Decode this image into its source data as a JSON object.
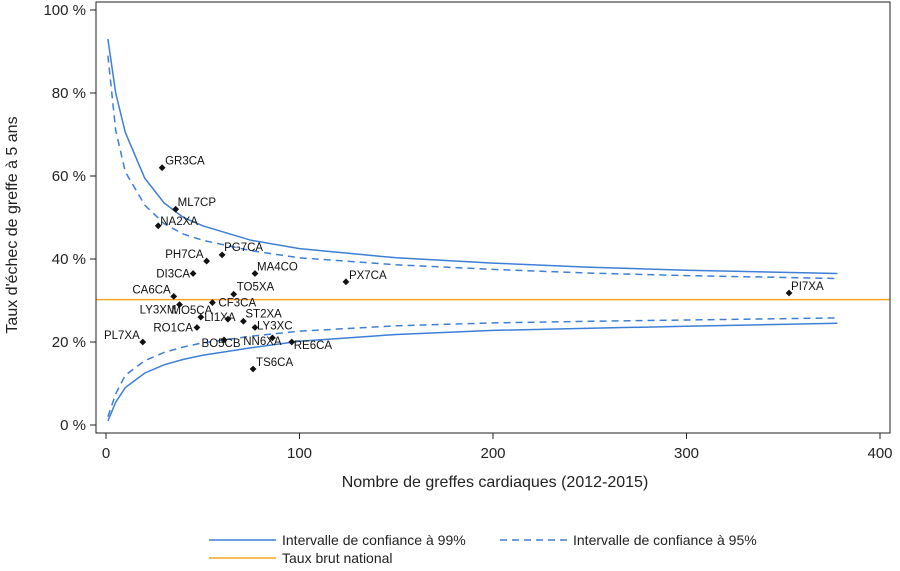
{
  "chart_data": {
    "type": "scatter",
    "title": "",
    "xlabel": "Nombre de greffes cardiaques (2012-2015)",
    "ylabel": "Taux d'échec de greffe à 5 ans",
    "xlim": [
      0,
      400
    ],
    "ylim": [
      0,
      100
    ],
    "xticks": [
      0,
      100,
      200,
      300,
      400
    ],
    "yticks": [
      0,
      20,
      40,
      60,
      80,
      100
    ],
    "ytick_labels": [
      "0 %",
      "20 %",
      "40 %",
      "60 %",
      "80 %",
      "100 %"
    ],
    "grid": false,
    "legend_position": "bottom",
    "national_rate": 30.2,
    "series": [
      {
        "name": "Intervalle de confiance à 99%",
        "style": "solid",
        "color": "#3d7fd6",
        "upper": [
          [
            1,
            93
          ],
          [
            5,
            80
          ],
          [
            10,
            70.5
          ],
          [
            20,
            59.5
          ],
          [
            30,
            53.5
          ],
          [
            40,
            50
          ],
          [
            50,
            48
          ],
          [
            75,
            44.5
          ],
          [
            100,
            42.5
          ],
          [
            150,
            40.3
          ],
          [
            200,
            39
          ],
          [
            250,
            38
          ],
          [
            300,
            37.3
          ],
          [
            378,
            36.5
          ]
        ],
        "lower": [
          [
            1,
            1
          ],
          [
            5,
            5.5
          ],
          [
            10,
            9
          ],
          [
            20,
            12.5
          ],
          [
            30,
            14.5
          ],
          [
            40,
            15.8
          ],
          [
            50,
            16.8
          ],
          [
            75,
            18.6
          ],
          [
            100,
            20.2
          ],
          [
            150,
            21.8
          ],
          [
            200,
            22.8
          ],
          [
            250,
            23.3
          ],
          [
            300,
            23.8
          ],
          [
            378,
            24.5
          ]
        ]
      },
      {
        "name": "Intervalle de confiance à 95%",
        "style": "dashed",
        "color": "#3d7fd6",
        "upper": [
          [
            1,
            89
          ],
          [
            5,
            71
          ],
          [
            10,
            61
          ],
          [
            20,
            53
          ],
          [
            30,
            48.5
          ],
          [
            40,
            46
          ],
          [
            50,
            44.5
          ],
          [
            75,
            42
          ],
          [
            100,
            40.3
          ],
          [
            150,
            38.6
          ],
          [
            200,
            37.5
          ],
          [
            250,
            36.6
          ],
          [
            300,
            36
          ],
          [
            378,
            35.3
          ]
        ],
        "lower": [
          [
            1,
            2
          ],
          [
            5,
            7.5
          ],
          [
            10,
            12
          ],
          [
            20,
            15.5
          ],
          [
            30,
            17.5
          ],
          [
            40,
            18.8
          ],
          [
            50,
            19.8
          ],
          [
            75,
            21.4
          ],
          [
            100,
            22.6
          ],
          [
            150,
            23.9
          ],
          [
            200,
            24.6
          ],
          [
            250,
            25
          ],
          [
            300,
            25.3
          ],
          [
            378,
            25.8
          ]
        ]
      },
      {
        "name": "Taux brut national",
        "style": "solid",
        "color": "#f5a623"
      }
    ],
    "points": [
      {
        "label": "GR3CA",
        "x": 29,
        "y": 62
      },
      {
        "label": "ML7CP",
        "x": 36,
        "y": 52
      },
      {
        "label": "NA2XA",
        "x": 27,
        "y": 48
      },
      {
        "label": "PH7CA",
        "x": 52,
        "y": 39.5
      },
      {
        "label": "PG7CA",
        "x": 60,
        "y": 41
      },
      {
        "label": "MA4CO",
        "x": 77,
        "y": 36.5
      },
      {
        "label": "DI3CA",
        "x": 45,
        "y": 36.5
      },
      {
        "label": "PX7CA",
        "x": 124,
        "y": 34.5
      },
      {
        "label": "TO5XA",
        "x": 66,
        "y": 31.5
      },
      {
        "label": "CA6CA",
        "x": 35,
        "y": 31
      },
      {
        "label": "LY3XM",
        "x": 38,
        "y": 29
      },
      {
        "label": "CF3CA",
        "x": 55,
        "y": 29.5
      },
      {
        "label": "PI7XA",
        "x": 353,
        "y": 31.8
      },
      {
        "label": "MO5CA",
        "x": 49,
        "y": 26
      },
      {
        "label": "ST2XA",
        "x": 71,
        "y": 25
      },
      {
        "label": "LI1XA",
        "x": 63,
        "y": 25.5
      },
      {
        "label": "RO1CA",
        "x": 47,
        "y": 23.5
      },
      {
        "label": "LY3XC",
        "x": 77,
        "y": 23.5
      },
      {
        "label": "PL7XA",
        "x": 19,
        "y": 20
      },
      {
        "label": "BO5CB",
        "x": 61,
        "y": 20.5
      },
      {
        "label": "NN6XA",
        "x": 86,
        "y": 21
      },
      {
        "label": "RE6CA",
        "x": 96,
        "y": 20
      },
      {
        "label": "TS6CA",
        "x": 76,
        "y": 13.5
      }
    ]
  }
}
